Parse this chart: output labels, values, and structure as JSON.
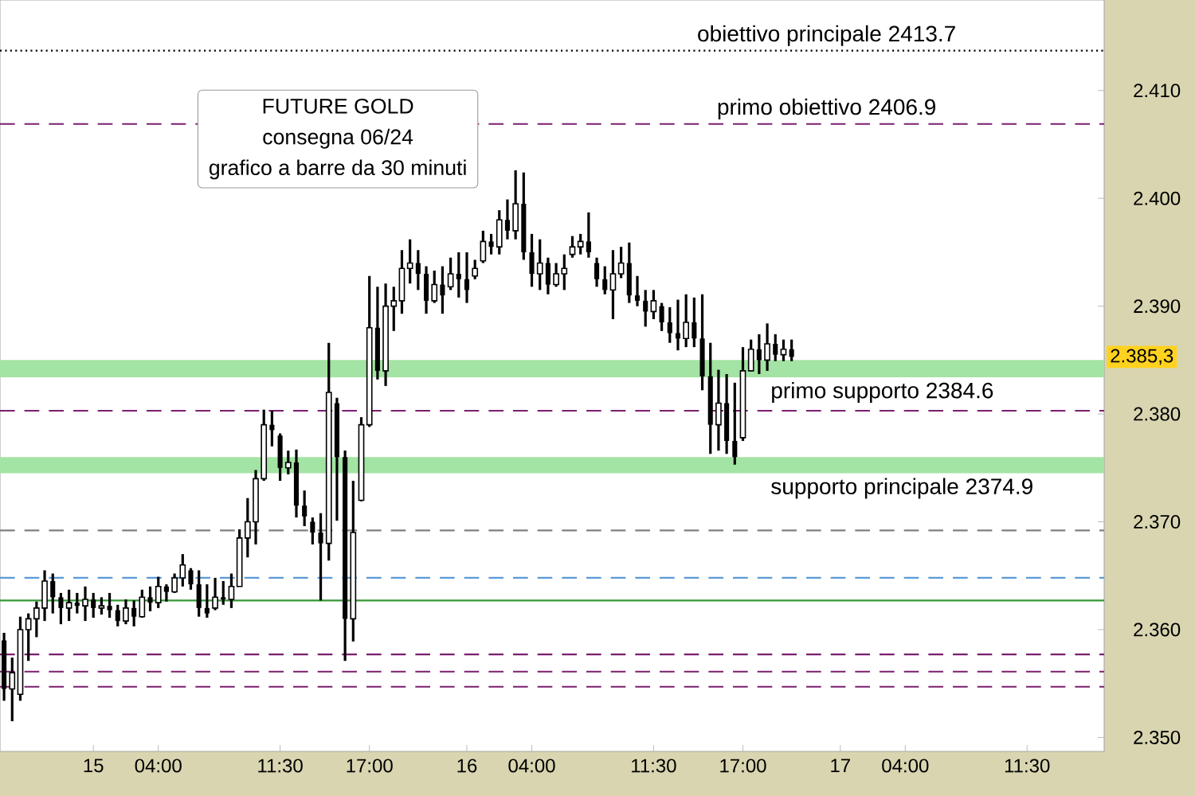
{
  "chart_data": {
    "type": "candlestick",
    "title": "FUTURE GOLD",
    "subtitle": "consegna 06/24",
    "annotations": [
      "grafico a barre da 30 minuti",
      "2.385,3"
    ],
    "color": "#000000",
    "categories": [
      null,
      null,
      null,
      null,
      null,
      null,
      null,
      null,
      null,
      null,
      null,
      "15",
      null,
      null,
      null,
      null,
      null,
      null,
      null,
      "04:00",
      null,
      null,
      null,
      null,
      null,
      null,
      null,
      null,
      null,
      null,
      null,
      null,
      null,
      null,
      "11:30",
      null,
      null,
      null,
      null,
      null,
      null,
      null,
      null,
      null,
      null,
      "17:00",
      null,
      null,
      null,
      null,
      null,
      null,
      null,
      null,
      null,
      null,
      null,
      "16",
      null,
      null,
      null,
      null,
      null,
      null,
      null,
      "04:00",
      null,
      null,
      null,
      null,
      null,
      null,
      null,
      null,
      null,
      null,
      null,
      null,
      null,
      null,
      "11:30",
      null,
      null,
      null,
      null,
      null,
      null,
      null,
      null,
      null,
      null,
      "17:00",
      null,
      null,
      null,
      null,
      null,
      null,
      null,
      null,
      null,
      null,
      null,
      "17",
      null,
      null,
      null,
      null,
      null,
      null,
      null,
      "04:00",
      null,
      null,
      null,
      null,
      null,
      null,
      null,
      null,
      null,
      null,
      null,
      null,
      null,
      null,
      "11:30",
      null,
      null,
      null,
      null,
      null,
      null,
      null,
      null,
      null
    ],
    "ohlc": [
      [
        2.359,
        2.3597,
        2.3534,
        2.3545
      ],
      [
        2.3545,
        2.3574,
        2.3515,
        2.356
      ],
      [
        2.354,
        2.3612,
        2.3534,
        2.36
      ],
      [
        2.36,
        2.3615,
        2.3571,
        2.361
      ],
      [
        2.361,
        2.3626,
        2.3593,
        2.362
      ],
      [
        2.362,
        2.3655,
        2.3608,
        2.3645
      ],
      [
        2.3645,
        2.3652,
        2.3615,
        2.363
      ],
      [
        2.363,
        2.3634,
        2.3605,
        2.362
      ],
      [
        2.362,
        2.3637,
        2.3608,
        2.3625
      ],
      [
        2.3625,
        2.3634,
        2.3615,
        2.3622
      ],
      [
        2.3622,
        2.364,
        2.3608,
        2.3628
      ],
      [
        2.3628,
        2.3634,
        2.3611,
        2.362
      ],
      [
        2.362,
        2.363,
        2.3614,
        2.3622
      ],
      [
        2.3622,
        2.3634,
        2.3611,
        2.3618
      ],
      [
        2.3618,
        2.3623,
        2.3603,
        2.3608
      ],
      [
        2.3608,
        2.3628,
        2.3605,
        2.362
      ],
      [
        2.362,
        2.3627,
        2.3603,
        2.3612
      ],
      [
        2.3612,
        2.3637,
        2.3611,
        2.363
      ],
      [
        2.363,
        2.364,
        2.3617,
        2.3625
      ],
      [
        2.3625,
        2.3649,
        2.362,
        2.364
      ],
      [
        2.364,
        2.3642,
        2.3626,
        2.3635
      ],
      [
        2.3635,
        2.3652,
        2.3634,
        2.3648
      ],
      [
        2.3648,
        2.367,
        2.364,
        2.366
      ],
      [
        2.3655,
        2.3657,
        2.3637,
        2.3642
      ],
      [
        2.3642,
        2.3655,
        2.3612,
        2.362
      ],
      [
        2.362,
        2.3642,
        2.3611,
        2.3615
      ],
      [
        2.362,
        2.3648,
        2.3618,
        2.363
      ],
      [
        2.363,
        2.3645,
        2.3623,
        2.3628
      ],
      [
        2.3628,
        2.3652,
        2.362,
        2.364
      ],
      [
        2.364,
        2.3693,
        2.364,
        2.3685
      ],
      [
        2.3685,
        2.3722,
        2.3667,
        2.37
      ],
      [
        2.37,
        2.3748,
        2.3679,
        2.374
      ],
      [
        2.374,
        2.3804,
        2.3738,
        2.379
      ],
      [
        2.379,
        2.3803,
        2.377,
        2.3785
      ],
      [
        2.378,
        2.3782,
        2.3738,
        2.375
      ],
      [
        2.375,
        2.3766,
        2.3744,
        2.3755
      ],
      [
        2.3755,
        2.3767,
        2.3704,
        2.3715
      ],
      [
        2.3715,
        2.3729,
        2.3696,
        2.3705
      ],
      [
        2.37,
        2.3704,
        2.3679,
        2.369
      ],
      [
        2.369,
        2.3708,
        2.3627,
        2.368
      ],
      [
        2.368,
        2.3866,
        2.3664,
        2.382
      ],
      [
        2.381,
        2.3815,
        2.3701,
        2.376
      ],
      [
        2.376,
        2.3766,
        2.3571,
        2.361
      ],
      [
        2.361,
        2.3738,
        2.3589,
        2.369
      ],
      [
        2.372,
        2.3797,
        2.3719,
        2.379
      ],
      [
        2.379,
        2.3928,
        2.3788,
        2.388
      ],
      [
        2.388,
        2.3918,
        2.3832,
        2.384
      ],
      [
        2.384,
        2.3921,
        2.3826,
        2.39
      ],
      [
        2.39,
        2.3918,
        2.3877,
        2.3905
      ],
      [
        2.3905,
        2.3952,
        2.3893,
        2.3935
      ],
      [
        2.3935,
        2.3962,
        2.3921,
        2.394
      ],
      [
        2.394,
        2.3952,
        2.3915,
        2.393
      ],
      [
        2.393,
        2.3937,
        2.3893,
        2.3905
      ],
      [
        2.3905,
        2.3933,
        2.3903,
        2.392
      ],
      [
        2.392,
        2.3937,
        2.3893,
        2.391
      ],
      [
        2.3918,
        2.3945,
        2.3915,
        2.393
      ],
      [
        2.393,
        2.395,
        2.3908,
        2.3925
      ],
      [
        2.3925,
        2.395,
        2.3903,
        2.3915
      ],
      [
        2.3928,
        2.3943,
        2.3925,
        2.3935
      ],
      [
        2.3942,
        2.397,
        2.394,
        2.396
      ],
      [
        2.396,
        2.3967,
        2.3948,
        2.3955
      ],
      [
        2.3955,
        2.3989,
        2.3948,
        2.398
      ],
      [
        2.398,
        2.3999,
        2.3962,
        2.397
      ],
      [
        2.397,
        2.4026,
        2.3962,
        2.3995
      ],
      [
        2.3995,
        2.4024,
        2.3943,
        2.395
      ],
      [
        2.395,
        2.3967,
        2.3918,
        2.393
      ],
      [
        2.393,
        2.3962,
        2.3915,
        2.394
      ],
      [
        2.394,
        2.3945,
        2.3911,
        2.392
      ],
      [
        2.392,
        2.394,
        2.3918,
        2.393
      ],
      [
        2.393,
        2.3948,
        2.3915,
        2.3935
      ],
      [
        2.3948,
        2.3965,
        2.3945,
        2.3955
      ],
      [
        2.3955,
        2.3967,
        2.3948,
        2.396
      ],
      [
        2.396,
        2.3987,
        2.3945,
        2.395
      ],
      [
        2.394,
        2.3945,
        2.3918,
        2.3925
      ],
      [
        2.3925,
        2.3937,
        2.3911,
        2.3915
      ],
      [
        2.3915,
        2.3952,
        2.3888,
        2.393
      ],
      [
        2.393,
        2.3955,
        2.3926,
        2.394
      ],
      [
        2.394,
        2.3959,
        2.3903,
        2.391
      ],
      [
        2.391,
        2.3928,
        2.39,
        2.3905
      ],
      [
        2.3905,
        2.3915,
        2.3881,
        2.3895
      ],
      [
        2.3895,
        2.3915,
        2.3888,
        2.3905
      ],
      [
        2.39,
        2.3903,
        2.3877,
        2.3885
      ],
      [
        2.3885,
        2.3899,
        2.3866,
        2.3875
      ],
      [
        2.3875,
        2.3906,
        2.3859,
        2.387
      ],
      [
        2.387,
        2.3911,
        2.3862,
        2.3885
      ],
      [
        2.3885,
        2.3908,
        2.3862,
        2.387
      ],
      [
        2.387,
        2.3911,
        2.3822,
        2.3835
      ],
      [
        2.3835,
        2.3866,
        2.3763,
        2.379
      ],
      [
        2.379,
        2.3841,
        2.3766,
        2.381
      ],
      [
        2.381,
        2.3837,
        2.3763,
        2.3775
      ],
      [
        2.3775,
        2.3829,
        2.3753,
        2.376
      ],
      [
        2.3778,
        2.3862,
        2.3775,
        2.384
      ],
      [
        2.384,
        2.3869,
        2.384,
        2.386
      ],
      [
        2.386,
        2.3874,
        2.3837,
        2.385
      ],
      [
        2.385,
        2.3884,
        2.384,
        2.3865
      ],
      [
        2.3865,
        2.3874,
        2.3849,
        2.3855
      ],
      [
        2.3855,
        2.3869,
        2.3849,
        2.386
      ],
      [
        2.386,
        2.3869,
        2.3849,
        2.3853
      ],
      null,
      null,
      null,
      null,
      null,
      null,
      null,
      null,
      null,
      null,
      null,
      null,
      null,
      null,
      null,
      null,
      null,
      null,
      null,
      null,
      null,
      null,
      null,
      null,
      null,
      null,
      null,
      null,
      null,
      null,
      null,
      null,
      null,
      null,
      null,
      null,
      null,
      null
    ],
    "ylim": [
      2.3487,
      2.4184
    ],
    "yticks": [
      {
        "value": 2.35,
        "label": "2.350"
      },
      {
        "value": 2.36,
        "label": "2.360"
      },
      {
        "value": 2.37,
        "label": "2.370"
      },
      {
        "value": 2.38,
        "label": "2.380"
      },
      {
        "value": 2.39,
        "label": "2.390"
      },
      {
        "value": 2.4,
        "label": "2.400"
      },
      {
        "value": 2.41,
        "label": "2.410"
      }
    ],
    "ref_lines": [
      {
        "axis": "y",
        "value": 2.4137,
        "label": "obiettivo principale 2413.7",
        "color": "#000000",
        "line_style": "dotted"
      },
      {
        "axis": "y",
        "value": 2.4069,
        "label": "primo obiettivo 2406.9",
        "color": "#7b1f6e",
        "line_style": "dashed"
      },
      {
        "axis": "y",
        "value": 2.3803,
        "color": "#7b1f6e",
        "line_style": "dashed"
      },
      {
        "axis": "y",
        "value": 2.3692,
        "color": "#808080",
        "line_style": "dashed"
      },
      {
        "axis": "y",
        "value": 2.3648,
        "color": "#5b9bd5",
        "line_style": "dashed"
      },
      {
        "axis": "y",
        "value": 2.3627,
        "color": "#339933",
        "line_style": "solid"
      },
      {
        "axis": "y",
        "value": 2.3577,
        "color": "#7b1f6e",
        "line_style": "dashed"
      },
      {
        "axis": "y",
        "value": 2.3561,
        "color": "#7b1f6e",
        "line_style": "dashed"
      },
      {
        "axis": "y",
        "value": 2.3547,
        "color": "#7b1f6e",
        "line_style": "dashed"
      }
    ],
    "bands": [
      {
        "axis": "y",
        "from": 2.3834,
        "to": 2.385,
        "label": "primo supporto 2384.6",
        "color": "#a3e3a3"
      },
      {
        "axis": "y",
        "from": 2.3745,
        "to": 2.376,
        "label": "supporto principale 2374.9",
        "color": "#a3e3a3"
      }
    ],
    "grid": false
  }
}
